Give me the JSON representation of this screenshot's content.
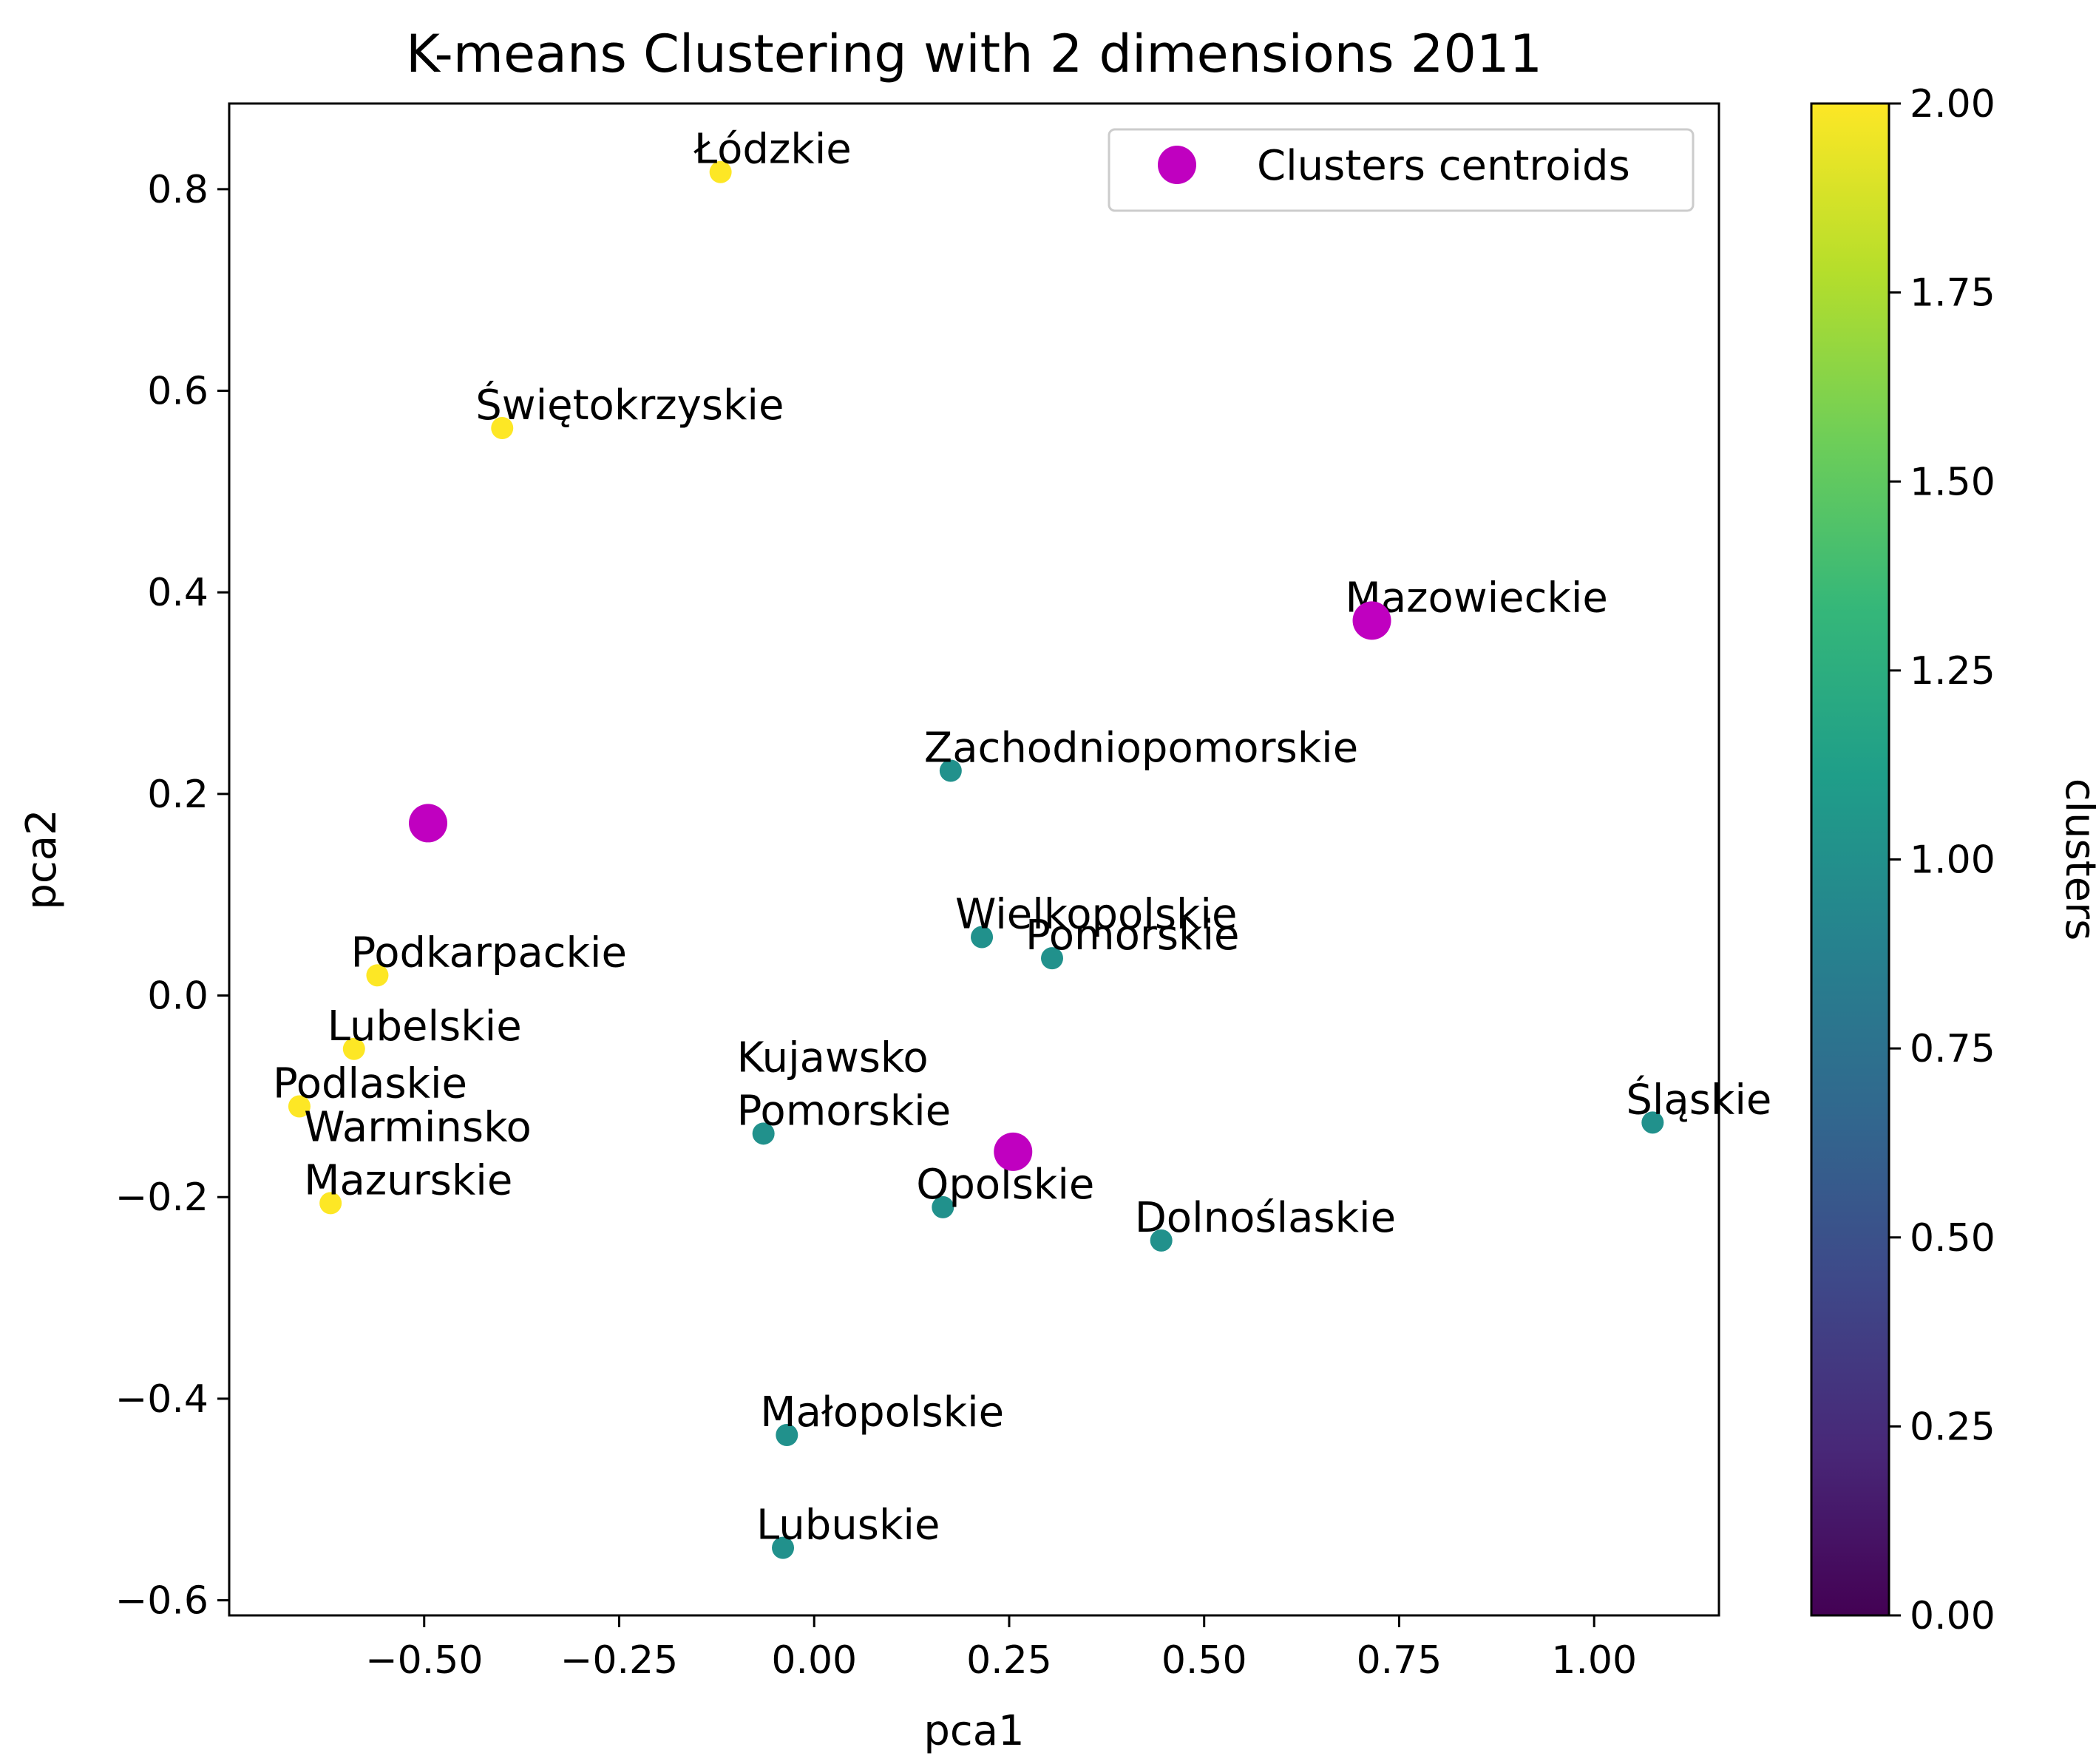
{
  "chart_data": {
    "type": "scatter",
    "title": "K-means Clustering with 2 dimensions 2011",
    "xlabel": "pca1",
    "ylabel": "pca2",
    "xlim": [
      -0.75,
      1.16
    ],
    "ylim": [
      -0.615,
      0.885
    ],
    "x_ticks": [
      -0.5,
      -0.25,
      0.0,
      0.25,
      0.5,
      0.75,
      1.0
    ],
    "x_tick_labels": [
      "−0.50",
      "−0.25",
      "0.00",
      "0.25",
      "0.50",
      "0.75",
      "1.00"
    ],
    "y_ticks": [
      -0.6,
      -0.4,
      -0.2,
      0.0,
      0.2,
      0.4,
      0.6,
      0.8
    ],
    "y_tick_labels": [
      "−0.6",
      "−0.4",
      "−0.2",
      "0.0",
      "0.2",
      "0.4",
      "0.6",
      "0.8"
    ],
    "colormap": "viridis",
    "points": [
      {
        "label": "Łódzkie",
        "x": -0.12,
        "y": 0.817,
        "cluster": 2
      },
      {
        "label": "Świętokrzyskie",
        "x": -0.4,
        "y": 0.563,
        "cluster": 2
      },
      {
        "label": "Podkarpackie",
        "x": -0.56,
        "y": 0.02,
        "cluster": 2
      },
      {
        "label": "Lubelskie",
        "x": -0.59,
        "y": -0.053,
        "cluster": 2
      },
      {
        "label": "Podlaskie",
        "x": -0.66,
        "y": -0.11,
        "cluster": 2
      },
      {
        "label": "Warminsko\nMazurskie",
        "x": -0.62,
        "y": -0.206,
        "cluster": 2
      },
      {
        "label": "Zachodniopomorskie",
        "x": 0.175,
        "y": 0.223,
        "cluster": 1
      },
      {
        "label": "Wielkopolskie",
        "x": 0.215,
        "y": 0.058,
        "cluster": 1
      },
      {
        "label": "Pomorskie",
        "x": 0.305,
        "y": 0.037,
        "cluster": 1
      },
      {
        "label": "Kujawsko\nPomorskie",
        "x": -0.065,
        "y": -0.137,
        "cluster": 1
      },
      {
        "label": "Opolskie",
        "x": 0.165,
        "y": -0.21,
        "cluster": 1
      },
      {
        "label": "Dolnoślaskie",
        "x": 0.445,
        "y": -0.243,
        "cluster": 1
      },
      {
        "label": "Śląskie",
        "x": 1.075,
        "y": -0.126,
        "cluster": 1
      },
      {
        "label": "Małopolskie",
        "x": -0.035,
        "y": -0.436,
        "cluster": 1
      },
      {
        "label": "Lubuskie",
        "x": -0.04,
        "y": -0.548,
        "cluster": 1
      },
      {
        "label": "Mazowieckie",
        "x": 0.715,
        "y": 0.372,
        "cluster": 0,
        "label_only": true
      }
    ],
    "centroids": [
      {
        "x": -0.495,
        "y": 0.171
      },
      {
        "x": 0.715,
        "y": 0.372
      },
      {
        "x": 0.255,
        "y": -0.155
      }
    ],
    "centroid_color": "#c000c0",
    "cluster_colors": {
      "1": "#21918c",
      "2": "#fde725"
    },
    "legend": {
      "label": "Clusters centroids",
      "position": "top-right"
    },
    "colorbar": {
      "label": "clusters",
      "range": [
        0.0,
        2.0
      ],
      "ticks": [
        0.0,
        0.25,
        0.5,
        0.75,
        1.0,
        1.25,
        1.5,
        1.75,
        2.0
      ],
      "tick_labels": [
        "0.00",
        "0.25",
        "0.50",
        "0.75",
        "1.00",
        "1.25",
        "1.50",
        "1.75",
        "2.00"
      ],
      "colors": [
        "#440154",
        "#482878",
        "#3e4989",
        "#31688e",
        "#26828e",
        "#1f9e89",
        "#35b779",
        "#6ece58",
        "#b5de2b",
        "#fde725"
      ]
    }
  }
}
